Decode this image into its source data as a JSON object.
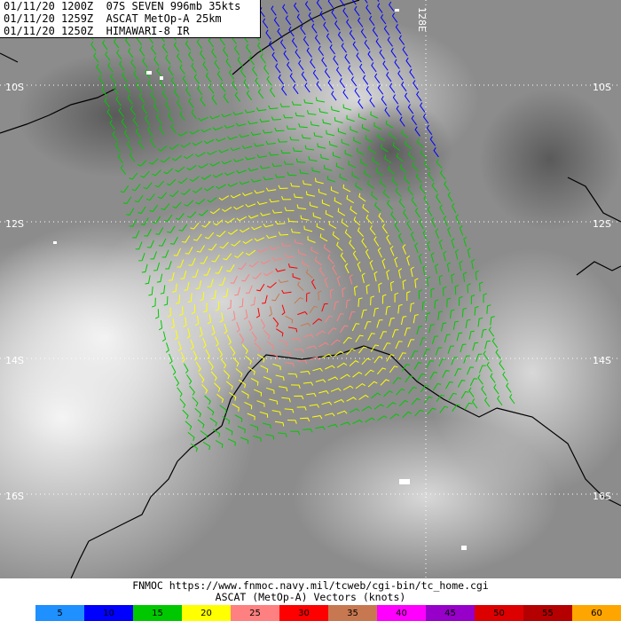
{
  "header": {
    "line1": "01/11/20 1200Z  07S SEVEN 996mb 35kts",
    "line2": "01/11/20 1259Z  ASCAT MetOp-A 25km",
    "line3": "01/11/20 1250Z  HIMAWARI-8 IR"
  },
  "grid": {
    "lat_labels": [
      "10S",
      "12S",
      "14S",
      "16S"
    ],
    "lon_label": "128E"
  },
  "footer": {
    "credit": "FNMOC https://www.fnmoc.navy.mil/tcweb/cgi-bin/tc_home.cgi",
    "legend_title": "ASCAT (MetOp-A) Vectors (knots)"
  },
  "legend": [
    {
      "value": "5",
      "color": "#1e90ff"
    },
    {
      "value": "10",
      "color": "#0000ff"
    },
    {
      "value": "15",
      "color": "#00c800"
    },
    {
      "value": "20",
      "color": "#ffff00"
    },
    {
      "value": "25",
      "color": "#ff8080"
    },
    {
      "value": "30",
      "color": "#ff0000"
    },
    {
      "value": "35",
      "color": "#c87850"
    },
    {
      "value": "40",
      "color": "#ff00ff"
    },
    {
      "value": "45",
      "color": "#9600c8"
    },
    {
      "value": "50",
      "color": "#dc0000"
    },
    {
      "value": "55",
      "color": "#b40000"
    },
    {
      "value": "60",
      "color": "#ffa500"
    }
  ]
}
